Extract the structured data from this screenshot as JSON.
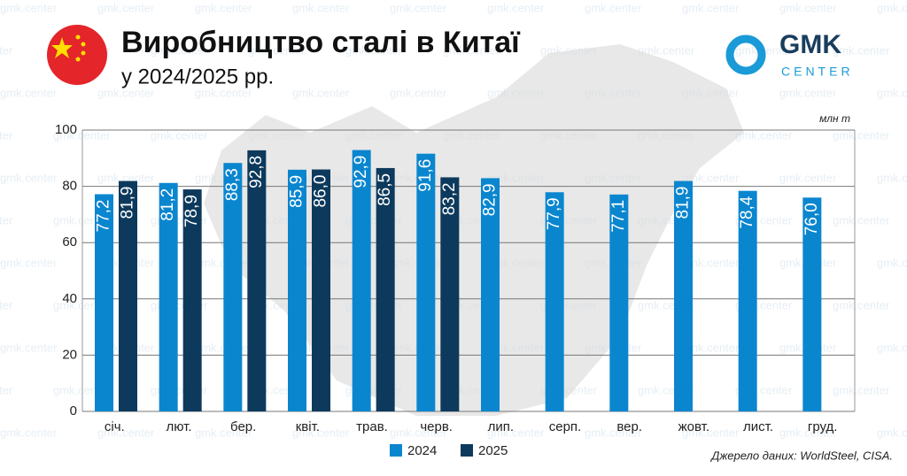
{
  "chart_data": {
    "type": "bar",
    "title": "Виробництво сталі в Китаї",
    "subtitle": "у 2024/2025 рр.",
    "unit": "млн т",
    "source": "Джерело даних: WorldSteel, CISA.",
    "logo": [
      "GMK",
      "CENTER"
    ],
    "watermark": "gmk.center",
    "categories": [
      "січ.",
      "лют.",
      "бер.",
      "квіт.",
      "трав.",
      "черв.",
      "лип.",
      "серп.",
      "вер.",
      "жовт.",
      "лист.",
      "груд."
    ],
    "series": [
      {
        "name": "2024",
        "color": "#0a86cf",
        "values": [
          77.2,
          81.2,
          88.3,
          85.9,
          92.9,
          91.6,
          82.9,
          77.9,
          77.1,
          81.9,
          78.4,
          76.0
        ],
        "value_labels": [
          "77,2",
          "81,2",
          "88,3",
          "85,9",
          "92,9",
          "91,6",
          "82,9",
          "77,9",
          "77,1",
          "81,9",
          "78,4",
          "76,0"
        ]
      },
      {
        "name": "2025",
        "color": "#0d3a5c",
        "values": [
          81.9,
          78.9,
          92.8,
          86.0,
          86.5,
          83.2,
          null,
          null,
          null,
          null,
          null,
          null
        ],
        "value_labels": [
          "81,9",
          "78,9",
          "92,8",
          "86,0",
          "86,5",
          "83,2",
          null,
          null,
          null,
          null,
          null,
          null
        ]
      }
    ],
    "ylim": [
      0,
      100
    ],
    "yticks": [
      0,
      20,
      40,
      60,
      80,
      100
    ],
    "grid": true
  }
}
